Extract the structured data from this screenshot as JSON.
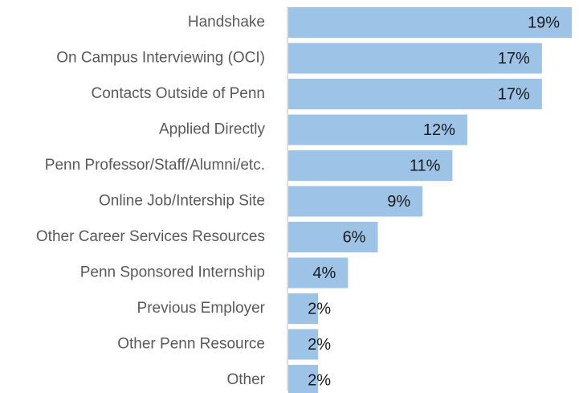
{
  "chart_data": {
    "type": "bar",
    "orientation": "horizontal",
    "categories": [
      "Handshake",
      "On Campus Interviewing (OCI)",
      "Contacts Outside of Penn",
      "Applied Directly",
      "Penn Professor/Staff/Alumni/etc.",
      "Online Job/Intership Site",
      "Other Career Services Resources",
      "Penn Sponsored Internship",
      "Previous Employer",
      "Other Penn Resource",
      "Other"
    ],
    "values": [
      19,
      17,
      17,
      12,
      11,
      9,
      6,
      4,
      2,
      2,
      2
    ],
    "value_labels": [
      "19%",
      "17%",
      "17%",
      "12%",
      "11%",
      "9%",
      "6%",
      "4%",
      "2%",
      "2%",
      "2%"
    ],
    "color": "#9dc3e6"
  }
}
